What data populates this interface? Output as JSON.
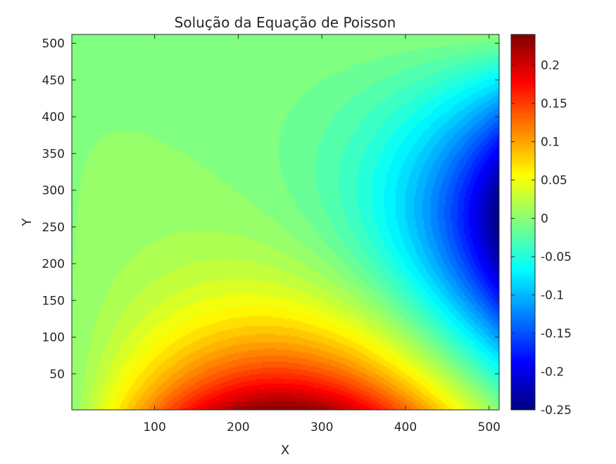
{
  "chart_data": {
    "type": "heatmap",
    "title": "Solução da Equação de Poisson",
    "xlabel": "X",
    "ylabel": "Y",
    "xlim": [
      1,
      512
    ],
    "ylim": [
      1,
      512
    ],
    "x_ticks": [
      100,
      200,
      300,
      400,
      500
    ],
    "y_ticks": [
      50,
      100,
      150,
      200,
      250,
      300,
      350,
      400,
      450,
      500
    ],
    "x_tick_labels": [
      "100",
      "200",
      "300",
      "400",
      "500"
    ],
    "y_tick_labels": [
      "50",
      "100",
      "150",
      "200",
      "250",
      "300",
      "350",
      "400",
      "450",
      "500"
    ],
    "colorbar": {
      "min": -0.25,
      "max": 0.24,
      "colormap": "jet",
      "ticks": [
        0.2,
        0.15,
        0.1,
        0.05,
        0,
        -0.05,
        -0.1,
        -0.15,
        -0.2,
        -0.25
      ],
      "tick_labels": [
        "0.2",
        "0.15",
        "0.1",
        "0.05",
        "0",
        "-0.05",
        "-0.1",
        "-0.15",
        "-0.2",
        "-0.25"
      ]
    },
    "contour_levels": 45,
    "grid": false,
    "field_extrema": {
      "max": {
        "x": 240,
        "y": 1,
        "value": 0.24
      },
      "min": {
        "x": 512,
        "y": 270,
        "value": -0.25
      }
    }
  }
}
